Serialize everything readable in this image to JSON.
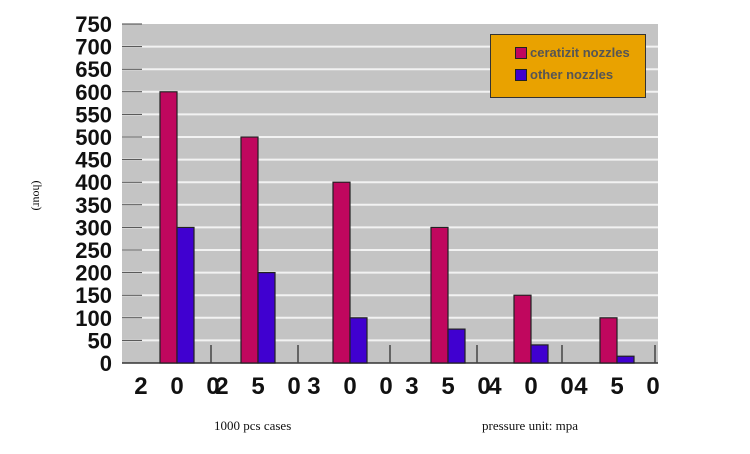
{
  "chart_data": {
    "type": "bar",
    "categories": [
      "2 0 0",
      "2 5 0",
      "3 0 0",
      "3 5 0",
      "4 0 0",
      "4 5 0"
    ],
    "series": [
      {
        "name": "ceratizit nozzles",
        "color": "#c0075e",
        "values": [
          600,
          500,
          400,
          300,
          150,
          100
        ]
      },
      {
        "name": "other nozzles",
        "color": "#4000d0",
        "values": [
          300,
          200,
          100,
          75,
          40,
          15
        ]
      }
    ],
    "ylabel": "(hour)",
    "ylim": [
      0,
      750
    ],
    "yticks": [
      0,
      50,
      100,
      150,
      200,
      250,
      300,
      350,
      400,
      450,
      500,
      550,
      600,
      650,
      700,
      750
    ],
    "grid": true,
    "legend": "top-right",
    "background": "#c4c4c4",
    "legend_bg": "#e9a200",
    "notes": [
      "1000 pcs cases",
      "pressure unit: mpa"
    ]
  }
}
